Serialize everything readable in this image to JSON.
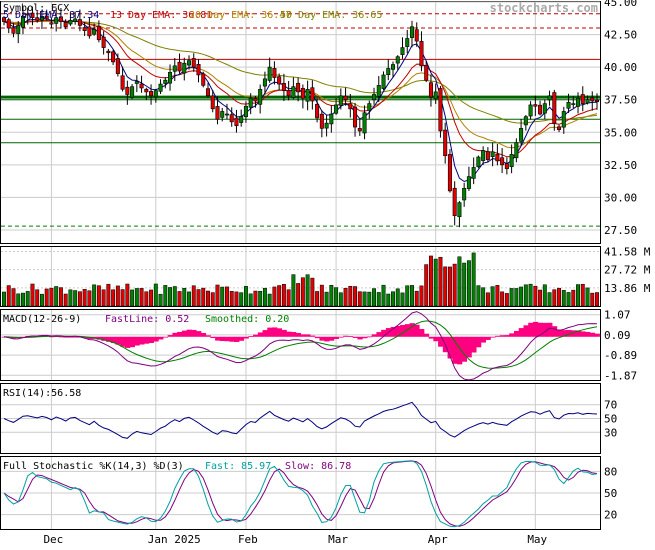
{
  "symbol_label": "Symbol: ECX",
  "watermark": "stockcharts.com",
  "legend": {
    "ema5": "5 Day EMA: 37.34",
    "ema13": "13 Day EMA: 36.81",
    "ema20": "20 Day EMA: 36.47",
    "ema50": "50 Day EMA: 36.65"
  },
  "colors": {
    "up": "#008000",
    "down": "#e00000",
    "ema5": "#000080",
    "ema13": "#c00000",
    "ema20": "#b08000",
    "ema50": "#808000",
    "macd_fast": "#800080",
    "macd_slow": "#008000",
    "macd_hist": "#ff0080",
    "rsi": "#000080",
    "stoch_k": "#800080",
    "stoch_d": "#00a0a0",
    "hline_green": "#006400",
    "hline_red": "#c00000",
    "grid": "#cccccc"
  },
  "macd": {
    "label": "MACD(12-26-9)",
    "fast_label": "FastLine: 0.52",
    "smooth_label": "Smoothed: 0.20",
    "ticks": [
      "1.07",
      "0.09",
      "-0.89",
      "-1.87"
    ],
    "tick_values": [
      1.07,
      0.09,
      -0.89,
      -1.87
    ]
  },
  "rsi": {
    "label": "RSI(14):56.58",
    "ticks": [
      "70",
      "50",
      "30"
    ],
    "tick_values": [
      70,
      50,
      30
    ]
  },
  "stoch": {
    "label": "Full Stochastic %K(14,3) %D(3)",
    "fast_label": "Fast: 85.97",
    "slow_label": "Slow: 86.78",
    "ticks": [
      "80",
      "50",
      "20"
    ],
    "tick_values": [
      80,
      50,
      20
    ]
  },
  "volume_ticks": [
    "41.58 M",
    "27.72 M",
    "13.86 M"
  ],
  "volume_tick_values": [
    41.58,
    27.72,
    13.86
  ],
  "x_labels": [
    "Dec",
    "Jan 2025",
    "Feb",
    "Mar",
    "Apr",
    "May"
  ],
  "x_label_index": [
    10,
    32,
    51,
    70,
    91,
    112
  ],
  "chart_data": {
    "type": "candlestick",
    "y_ticks": [
      "45.00",
      "42.50",
      "40.00",
      "37.50",
      "35.00",
      "32.50",
      "30.00",
      "27.50"
    ],
    "y_tick_values": [
      45.0,
      42.5,
      40.0,
      37.5,
      35.0,
      32.5,
      30.0,
      27.5
    ],
    "ylim": [
      26.5,
      45.0
    ],
    "horizontal_lines": [
      {
        "value": 37.7,
        "style": "solid-green-thick"
      },
      {
        "value": 37.5,
        "style": "solid-green"
      },
      {
        "value": 36.0,
        "style": "solid-green"
      },
      {
        "value": 34.2,
        "style": "solid-green"
      },
      {
        "value": 44.1,
        "style": "dashed-red"
      },
      {
        "value": 43.0,
        "style": "dashed-red"
      },
      {
        "value": 40.6,
        "style": "solid-red"
      },
      {
        "value": 27.8,
        "style": "dashed-green"
      }
    ],
    "close": [
      43.5,
      43.0,
      42.6,
      43.2,
      43.9,
      44.0,
      43.8,
      43.6,
      43.9,
      43.7,
      43.3,
      43.8,
      43.5,
      43.1,
      43.6,
      43.7,
      43.2,
      42.8,
      42.4,
      42.9,
      42.1,
      41.5,
      41.1,
      40.4,
      39.5,
      38.3,
      37.9,
      38.5,
      38.9,
      38.4,
      38.1,
      37.8,
      38.2,
      38.7,
      39.0,
      39.6,
      40.1,
      39.7,
      40.3,
      40.5,
      40.0,
      39.4,
      38.6,
      37.8,
      36.8,
      36.0,
      36.6,
      36.4,
      35.8,
      35.5,
      36.2,
      37.0,
      37.6,
      37.4,
      38.3,
      39.1,
      40.0,
      39.2,
      38.7,
      38.2,
      37.8,
      38.5,
      38.1,
      37.6,
      38.3,
      37.4,
      36.1,
      35.3,
      35.7,
      36.4,
      37.1,
      37.8,
      37.5,
      36.8,
      35.4,
      35.1,
      36.5,
      37.2,
      37.9,
      38.6,
      39.4,
      39.9,
      40.2,
      40.8,
      41.5,
      42.2,
      43.1,
      42.0,
      40.1,
      39.0,
      37.7,
      38.1,
      35.1,
      33.2,
      30.5,
      28.6,
      29.6,
      30.7,
      31.6,
      32.3,
      33.1,
      33.6,
      32.9,
      33.5,
      32.8,
      32.5,
      32.2,
      33.3,
      34.2,
      35.3,
      36.2,
      37.1,
      37.0,
      36.4,
      37.2,
      37.8,
      35.7,
      35.2,
      36.6,
      37.3,
      37.2,
      37.6,
      37.2,
      37.5,
      37.4,
      37.34
    ],
    "ema5_final": 37.34,
    "ema13_final": 36.81,
    "ema20_final": 36.47,
    "ema50_final": 36.65,
    "volume_max": 45,
    "rsi_final": 56.58,
    "stoch_fast_final": 85.97,
    "stoch_slow_final": 86.78,
    "macd_fast_final": 0.52,
    "macd_smooth_final": 0.2
  }
}
